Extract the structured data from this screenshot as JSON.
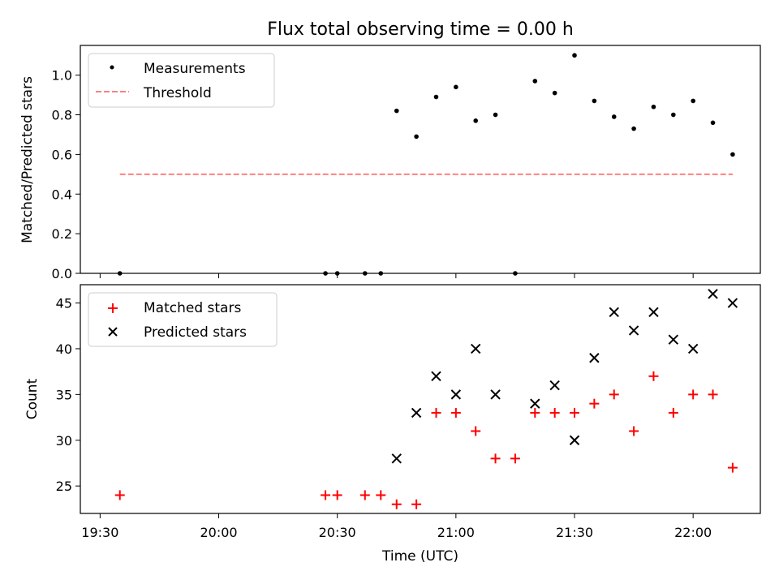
{
  "title": "Flux total observing time = 0.00 h",
  "colors": {
    "measurement": "#000000",
    "threshold": "#ff8080",
    "matched": "#ff0000",
    "predicted": "#000000"
  },
  "chart_data": [
    {
      "type": "scatter",
      "ylabel": "Matched/Predicted stars",
      "ylim": [
        0,
        1.15
      ],
      "yticks": [
        0.0,
        0.2,
        0.4,
        0.6,
        0.8,
        1.0
      ],
      "ytick_labels": [
        "0.0",
        "0.2",
        "0.4",
        "0.6",
        "0.8",
        "1.0"
      ],
      "legend": {
        "placement": "top-left",
        "entries": [
          "Measurements",
          "Threshold"
        ]
      },
      "series": [
        {
          "name": "Measurements",
          "marker": "dot",
          "x": [
            "19:35",
            "20:27",
            "20:30",
            "20:37",
            "20:41",
            "20:45",
            "20:50",
            "20:55",
            "21:00",
            "21:05",
            "21:10",
            "21:15",
            "21:20",
            "21:25",
            "21:30",
            "21:35",
            "21:40",
            "21:45",
            "21:50",
            "21:55",
            "22:00",
            "22:05",
            "22:10"
          ],
          "y": [
            0.0,
            0.0,
            0.0,
            0.0,
            0.0,
            0.82,
            0.69,
            0.89,
            0.94,
            0.77,
            0.8,
            0.0,
            0.97,
            0.91,
            1.1,
            0.87,
            0.79,
            0.73,
            0.84,
            0.8,
            0.87,
            0.76,
            0.6
          ]
        },
        {
          "name": "Threshold",
          "marker": "dashed-line",
          "x": [
            "19:35",
            "22:10"
          ],
          "y": [
            0.5,
            0.5
          ]
        }
      ]
    },
    {
      "type": "scatter",
      "xlabel": "Time (UTC)",
      "ylabel": "Count",
      "ylim": [
        22,
        47
      ],
      "yticks": [
        25,
        30,
        35,
        40,
        45
      ],
      "ytick_labels": [
        "25",
        "30",
        "35",
        "40",
        "45"
      ],
      "x_tick_labels": [
        "19:30",
        "20:00",
        "20:30",
        "21:00",
        "21:30",
        "22:00"
      ],
      "legend": {
        "placement": "top-left",
        "entries": [
          "Matched stars",
          "Predicted stars"
        ]
      },
      "series": [
        {
          "name": "Matched stars",
          "marker": "plus",
          "x": [
            "19:35",
            "20:27",
            "20:30",
            "20:37",
            "20:41",
            "20:45",
            "20:50",
            "20:55",
            "21:00",
            "21:05",
            "21:10",
            "21:15",
            "21:20",
            "21:25",
            "21:30",
            "21:35",
            "21:40",
            "21:45",
            "21:50",
            "21:55",
            "22:00",
            "22:05",
            "22:10"
          ],
          "y": [
            24,
            24,
            24,
            24,
            24,
            23,
            23,
            33,
            33,
            31,
            28,
            28,
            33,
            33,
            33,
            34,
            35,
            31,
            37,
            33,
            35,
            35,
            27
          ]
        },
        {
          "name": "Predicted stars",
          "marker": "x",
          "x": [
            "20:45",
            "20:50",
            "20:55",
            "21:00",
            "21:05",
            "21:10",
            "21:20",
            "21:25",
            "21:30",
            "21:35",
            "21:40",
            "21:45",
            "21:50",
            "21:55",
            "22:00",
            "22:05",
            "22:10"
          ],
          "y": [
            28,
            33,
            37,
            35,
            40,
            35,
            34,
            36,
            30,
            39,
            44,
            42,
            44,
            41,
            40,
            46,
            45
          ]
        }
      ]
    }
  ]
}
